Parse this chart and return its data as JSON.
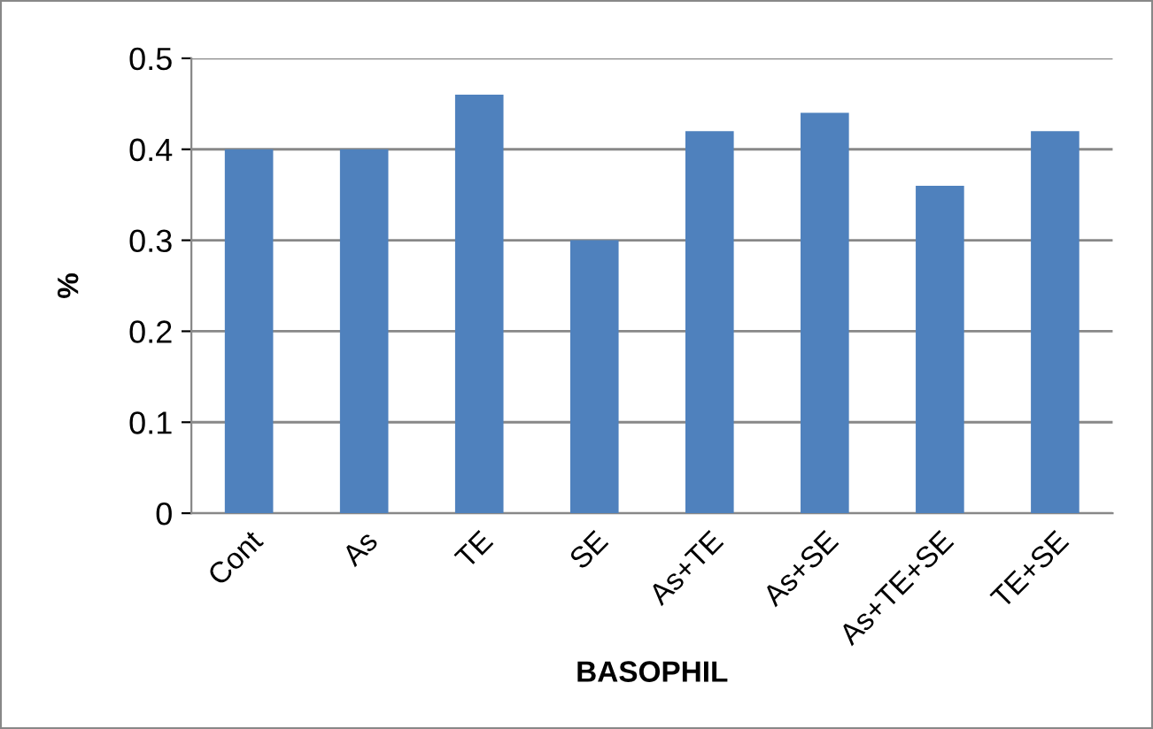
{
  "chart_data": {
    "type": "bar",
    "xlabel": "BASOPHIL",
    "ylabel": "%",
    "categories": [
      "Cont",
      "As",
      "TE",
      "SE",
      "As+TE",
      "As+SE",
      "As+TE+SE",
      "TE+SE"
    ],
    "values": [
      0.4,
      0.4,
      0.46,
      0.3,
      0.42,
      0.44,
      0.36,
      0.42
    ],
    "color": "#4f81bd",
    "ylim": [
      0,
      0.5
    ],
    "yticks": [
      0,
      0.1,
      0.2,
      0.3,
      0.4,
      0.5
    ],
    "grid": "y",
    "legend": false
  }
}
